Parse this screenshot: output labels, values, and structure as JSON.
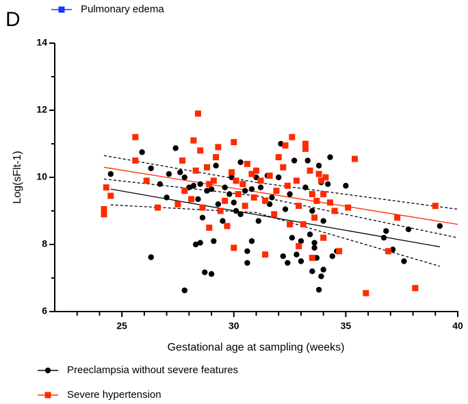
{
  "chart_data": {
    "type": "scatter",
    "panel_label": "D",
    "x_label": "Gestational age at sampling (weeks)",
    "y_label": "Log(sFlt-1)",
    "xlim": [
      22,
      40
    ],
    "ylim": [
      6,
      14
    ],
    "xticks": [
      25,
      30,
      35,
      40
    ],
    "yticks": [
      6,
      8,
      10,
      12,
      14
    ],
    "xminor_ticks": [
      23,
      24,
      26,
      27,
      28,
      29,
      31,
      32,
      33,
      34,
      36,
      37,
      38,
      39
    ],
    "yminor_ticks": [
      7,
      9,
      11,
      13
    ],
    "series": [
      {
        "name": "Preeclampsia without severe features",
        "color": "#000000",
        "marker": "circle",
        "x": [
          24.5,
          25.9,
          26.3,
          26.3,
          26.7,
          27,
          27.1,
          27.4,
          27.6,
          27.8,
          27.8,
          28,
          28.2,
          28.3,
          28.4,
          28.5,
          28.5,
          28.6,
          28.7,
          28.8,
          29,
          29,
          29.1,
          29.2,
          29.3,
          29.5,
          29.6,
          29.8,
          29.9,
          30,
          30.1,
          30.3,
          30.5,
          30.6,
          30.6,
          30.8,
          30.8,
          31,
          31.1,
          31.2,
          31.5,
          31.7,
          32,
          32.1,
          32.2,
          32.3,
          32.4,
          32.5,
          32.7,
          32.8,
          33,
          33,
          33.2,
          33.3,
          33.4,
          33.5,
          33.5,
          33.6,
          33.7,
          33.8,
          33.8,
          33.9,
          34,
          34,
          34.2,
          34.3,
          34.4,
          34.6,
          35,
          36.7,
          36.8,
          37.1,
          37.6,
          37.8,
          39.2,
          33.6,
          33.9,
          32.6,
          31.6,
          30.3
        ],
        "values": [
          10.1,
          10.75,
          10.27,
          7.62,
          9.8,
          9.4,
          10.1,
          10.87,
          10.15,
          6.63,
          10,
          9.7,
          9.75,
          8,
          9.35,
          8.05,
          9.8,
          8.8,
          7.17,
          9.6,
          7.12,
          9.65,
          8.1,
          10.35,
          9.2,
          8.7,
          9.7,
          9.5,
          10,
          9.25,
          9,
          10.45,
          9.6,
          7.8,
          7.45,
          9.65,
          8.1,
          10,
          8.7,
          9.7,
          10.05,
          9.4,
          10,
          11,
          7.65,
          9.05,
          7.45,
          9.5,
          10.5,
          7.7,
          8.1,
          7.5,
          9.7,
          10.5,
          8.3,
          7.2,
          9,
          8.05,
          7.6,
          10.35,
          6.65,
          9.85,
          8.7,
          7.25,
          9.8,
          10.6,
          7.65,
          7.8,
          9.75,
          8.2,
          8.4,
          7.85,
          7.5,
          8.45,
          8.55,
          7.9,
          7.05,
          8.2,
          9.2,
          8.9
        ]
      },
      {
        "name": "Severe hypertension",
        "color": "#ff2a00",
        "marker": "square",
        "x": [
          24.2,
          24.2,
          24.3,
          24.5,
          25.6,
          25.6,
          26.1,
          26.6,
          27.5,
          27.7,
          27.8,
          28.1,
          28.2,
          28.3,
          28.4,
          28.5,
          28.6,
          28.8,
          28.9,
          28.9,
          29.2,
          29.3,
          29.4,
          29.6,
          29.7,
          29.9,
          30,
          30,
          30.1,
          30.2,
          30.5,
          30.6,
          30.8,
          30.9,
          31,
          31.2,
          31.4,
          31.4,
          31.6,
          31.8,
          31.9,
          32,
          32.2,
          32.3,
          32.4,
          32.5,
          32.6,
          32.8,
          32.9,
          33.1,
          33.2,
          33.4,
          33.5,
          33.5,
          33.6,
          33.7,
          33.8,
          33.9,
          34,
          34,
          34.1,
          34.3,
          34.5,
          34.7,
          35.1,
          35.4,
          35.9,
          36.9,
          37.3,
          38.1,
          39,
          33.2,
          30.4,
          29.1,
          32.9
        ],
        "values": [
          9.05,
          8.9,
          9.7,
          9.45,
          11.2,
          10.5,
          9.9,
          9.1,
          9.2,
          10.5,
          9.6,
          9.35,
          11.1,
          10.2,
          11.9,
          10.8,
          9.1,
          10.3,
          9.8,
          8.5,
          10.6,
          10.9,
          9,
          9.3,
          8.55,
          10.15,
          7.9,
          11.05,
          9.9,
          9.5,
          9.15,
          10.4,
          10.1,
          9.4,
          10.2,
          9.9,
          9.3,
          7.7,
          10.05,
          8.9,
          9.6,
          10.6,
          10.3,
          10.95,
          9.75,
          8.6,
          11.2,
          9.9,
          9.15,
          8.6,
          10.85,
          10.2,
          9.5,
          7.6,
          8.8,
          9.3,
          10.1,
          9.9,
          9.5,
          8.2,
          10,
          9.25,
          9,
          7.8,
          9.1,
          10.55,
          6.55,
          7.8,
          8.8,
          6.7,
          9.15,
          11,
          9.8,
          9.9,
          7.95
        ]
      },
      {
        "name": "Pulmonary edema",
        "color": "#1a33ff",
        "marker": "square",
        "x": [],
        "values": []
      }
    ],
    "fit_lines": [
      {
        "x": [
          24.5,
          39.2
        ],
        "values": [
          9.65,
          7.93
        ],
        "color": "#000000",
        "dashed": false
      },
      {
        "x": [
          24.2,
          40
        ],
        "values": [
          10.3,
          8.6
        ],
        "color": "#ff2a00",
        "dashed": false
      },
      {
        "x": [
          24.2,
          31,
          40
        ],
        "values": [
          10.65,
          9.85,
          9.05
        ],
        "color": "#000000",
        "dashed": true
      },
      {
        "x": [
          24.2,
          31,
          40
        ],
        "values": [
          9.95,
          9.45,
          8.2
        ],
        "color": "#000000",
        "dashed": true
      },
      {
        "x": [
          24.5,
          31,
          39.2
        ],
        "values": [
          9.18,
          8.95,
          7.35
        ],
        "color": "#000000",
        "dashed": true
      }
    ]
  }
}
